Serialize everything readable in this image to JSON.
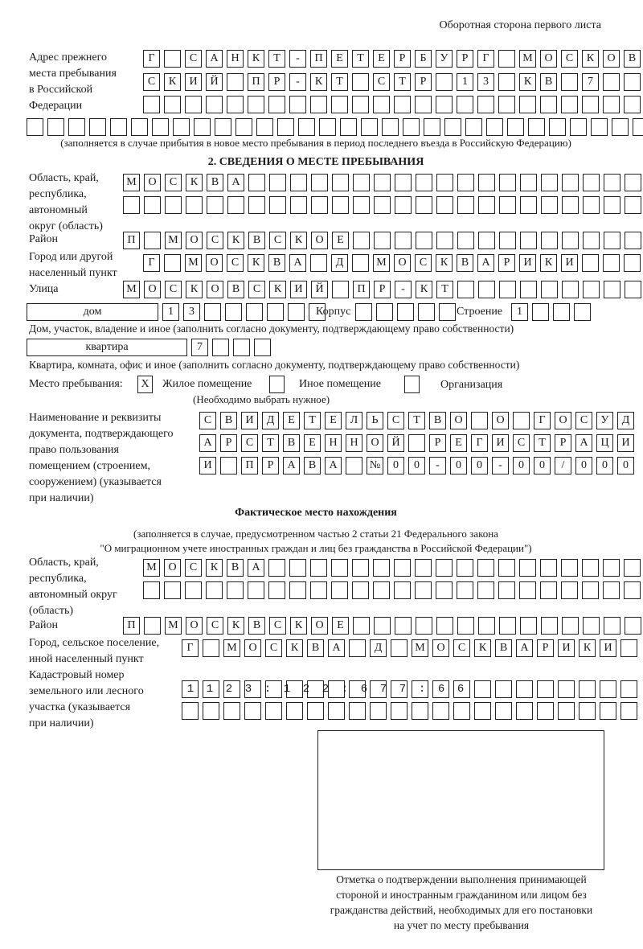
{
  "page_header": "Оборотная сторона первого листа",
  "prev_address": {
    "label": [
      "Адрес прежнего",
      "места пребывания",
      "в Российской",
      "Федерации"
    ],
    "rows": [
      "Г САНКТ-ПЕТЕРБУРГ МОСКОВ",
      "СКИЙ ПР-КТ СТР 13 КВ 7  ",
      "",
      ""
    ],
    "note": "(заполняется в случае прибытия в новое место пребывания в период последнего въезда в Российскую Федерацию)"
  },
  "section2": {
    "title": "2. СВЕДЕНИЯ О МЕСТЕ ПРЕБЫВАНИЯ",
    "region_label": [
      "Область, край,",
      "республика,",
      "автономный",
      "округ (область)"
    ],
    "region_rows": [
      "МОСКВА",
      ""
    ],
    "district_label": "Район",
    "district": "П МОСКВСКОЕ",
    "city_label": [
      "Город или другой",
      "населенный пункт"
    ],
    "city": "Г МОСКВА Д МОСКВАРИКИ",
    "street_label": "Улица",
    "street": "МОСКОВСКИЙ ПР-КТ",
    "house_type": "дом",
    "house_number": "13",
    "korpus_label": "Корпус",
    "korpus": "",
    "building_label": "Строение",
    "building": "1",
    "house_note": "Дом, участок, владение и иное (заполнить согласно документу, подтверждающему право собственности)",
    "apt_type": "квартира",
    "apt_number": "7",
    "apt_note": "Квартира, комната, офис и иное (заполнить согласно документу, подтверждающему право собственности)",
    "stay_label": "Место пребывания:",
    "stay_options": [
      {
        "label": "Жилое помещение",
        "mark": "X"
      },
      {
        "label": "Иное помещение",
        "mark": ""
      },
      {
        "label": "Организация",
        "mark": ""
      }
    ],
    "stay_note": "(Необходимо выбрать нужное)",
    "doc_label": [
      "Наименование и реквизиты",
      "документа, подтверждающего",
      "право пользования",
      "помещением (строением,",
      "сооружением) (указывается",
      "при наличии)"
    ],
    "doc_rows": [
      "СВИДЕТЕЛЬСТВО О ГОСУД",
      "АРСТВЕННОЙ РЕГИСТРАЦИ",
      "И ПРАВА №00-00-00/000"
    ]
  },
  "actual": {
    "title": "Фактическое место нахождения",
    "note": [
      "(заполняется в случае, предусмотренном частью 2 статьи 21 Федерального закона",
      "\"О миграционном учете иностранных граждан и лиц без гражданства в Российской Федерации\")"
    ],
    "region_label": [
      "Область, край,",
      "республика,",
      "автономный округ",
      "(область)"
    ],
    "region_rows": [
      "МОСКВА",
      ""
    ],
    "district_label": "Район",
    "district": "П МОСКВСКОЕ",
    "city_label": [
      "Город, сельское поселение,",
      "иной населенный пункт"
    ],
    "city": "Г МОСКВА Д МОСКВАРИКИ",
    "cadastre_label": [
      "Кадастровый номер",
      "земельного или лесного",
      "участка (указывается",
      "при наличии)"
    ],
    "cadastre_rows": [
      "1123:122:677:66",
      ""
    ]
  },
  "stamp_caption": [
    "Отметка о подтверждении выполнения принимающей",
    "стороной и иностранным гражданином или лицом без",
    "гражданства действий, необходимых для его постановки",
    "на учет по месту пребывания"
  ]
}
